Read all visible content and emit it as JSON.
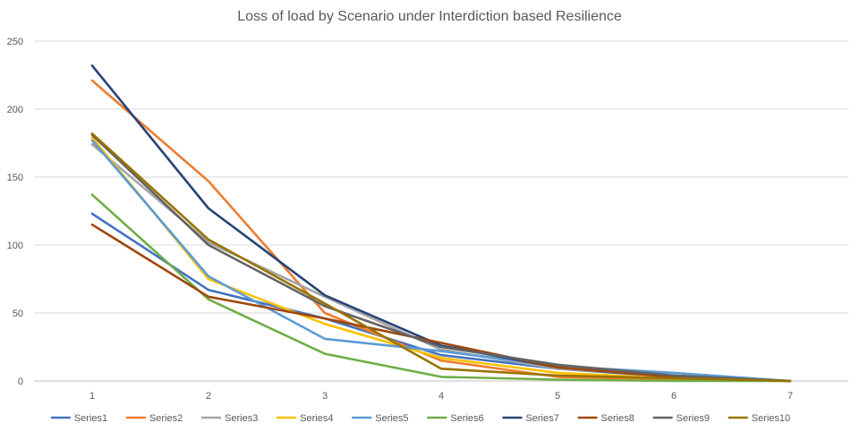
{
  "chart_data": {
    "type": "line",
    "title": "Loss of load by Scenario under Interdiction based Resilience",
    "xlabel": "",
    "ylabel": "",
    "x": [
      1,
      2,
      3,
      4,
      5,
      6,
      7
    ],
    "ylim": [
      0,
      250
    ],
    "yticks": [
      0,
      50,
      100,
      150,
      200,
      250
    ],
    "grid": true,
    "legend_position": "bottom",
    "series": [
      {
        "name": "Series1",
        "color": "#4472C4",
        "values": [
          123,
          67,
          46,
          19,
          9,
          3,
          0
        ]
      },
      {
        "name": "Series2",
        "color": "#ED7D31",
        "values": [
          221,
          147,
          50,
          15,
          3,
          1,
          0
        ]
      },
      {
        "name": "Series3",
        "color": "#A5A5A5",
        "values": [
          174,
          102,
          62,
          23,
          9,
          4,
          0
        ]
      },
      {
        "name": "Series4",
        "color": "#FFC000",
        "values": [
          179,
          75,
          42,
          17,
          6,
          2,
          0
        ]
      },
      {
        "name": "Series5",
        "color": "#5B9BD5",
        "values": [
          177,
          77,
          31,
          22,
          11,
          6,
          0
        ]
      },
      {
        "name": "Series6",
        "color": "#70AD47",
        "values": [
          137,
          60,
          20,
          3,
          1,
          0,
          0
        ]
      },
      {
        "name": "Series7",
        "color": "#264478",
        "values": [
          232,
          127,
          63,
          26,
          10,
          3,
          0
        ]
      },
      {
        "name": "Series8",
        "color": "#9E480E",
        "values": [
          115,
          62,
          46,
          28,
          10,
          3,
          0
        ]
      },
      {
        "name": "Series9",
        "color": "#636363",
        "values": [
          181,
          100,
          55,
          25,
          12,
          4,
          0
        ]
      },
      {
        "name": "Series10",
        "color": "#997300",
        "values": [
          182,
          104,
          57,
          9,
          4,
          2,
          0
        ]
      }
    ]
  }
}
